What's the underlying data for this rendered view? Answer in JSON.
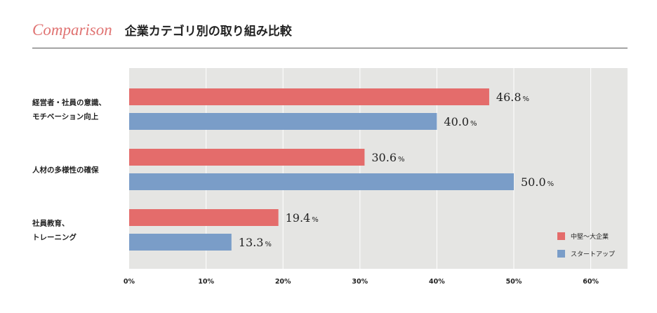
{
  "header": {
    "comparison": "Comparison",
    "title": "企業カテゴリ別の取り組み比較"
  },
  "colors": {
    "series1": "#e46c6b",
    "series2": "#7a9dc8",
    "plot_bg": "#e5e5e3",
    "grid": "#ffffff",
    "accent": "#e07372"
  },
  "chart_data": {
    "type": "bar",
    "orientation": "horizontal",
    "title": "企業カテゴリ別の取り組み比較",
    "categories": [
      [
        "経営者・社員の意識、",
        "モチベーション向上"
      ],
      [
        "人材の多様性の確保"
      ],
      [
        "社員教育、",
        "トレーニング"
      ]
    ],
    "series": [
      {
        "name": "中堅〜大企業",
        "values": [
          46.8,
          30.6,
          19.4
        ]
      },
      {
        "name": "スタートアップ",
        "values": [
          40.0,
          50.0,
          13.3
        ]
      }
    ],
    "value_suffix": "%",
    "xlim": [
      0,
      65
    ],
    "xticks": [
      0,
      10,
      20,
      30,
      40,
      50,
      60
    ],
    "tick_labels": [
      "0%",
      "10%",
      "20%",
      "30%",
      "40%",
      "50%",
      "60%"
    ],
    "grid": true,
    "legend_position": "bottom-right"
  }
}
